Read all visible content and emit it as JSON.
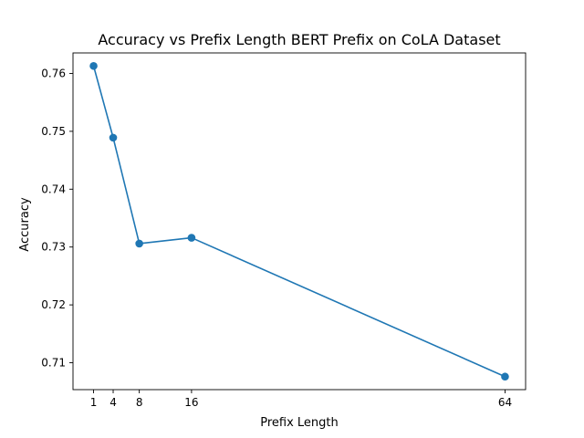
{
  "chart_data": {
    "type": "line",
    "title": "Accuracy vs Prefix Length BERT Prefix on CoLA Dataset",
    "xlabel": "Prefix Length",
    "ylabel": "Accuracy",
    "x": [
      1,
      4,
      8,
      16,
      64
    ],
    "series": [
      {
        "values": [
          0.7613,
          0.7489,
          0.7306,
          0.7316,
          0.7076
        ],
        "color": "#1f77b4",
        "marker": "circle"
      }
    ],
    "xticks": [
      1,
      4,
      8,
      16,
      64
    ],
    "xtick_labels": [
      "1",
      "4",
      "8",
      "16",
      "64"
    ],
    "yticks": [
      0.71,
      0.72,
      0.73,
      0.74,
      0.75,
      0.76
    ],
    "ytick_labels": [
      "0.71",
      "0.72",
      "0.73",
      "0.74",
      "0.75",
      "0.76"
    ],
    "xlim": [
      -2.15,
      67.15
    ],
    "ylim": [
      0.70535,
      0.76355
    ],
    "grid": false,
    "legend": "none"
  }
}
